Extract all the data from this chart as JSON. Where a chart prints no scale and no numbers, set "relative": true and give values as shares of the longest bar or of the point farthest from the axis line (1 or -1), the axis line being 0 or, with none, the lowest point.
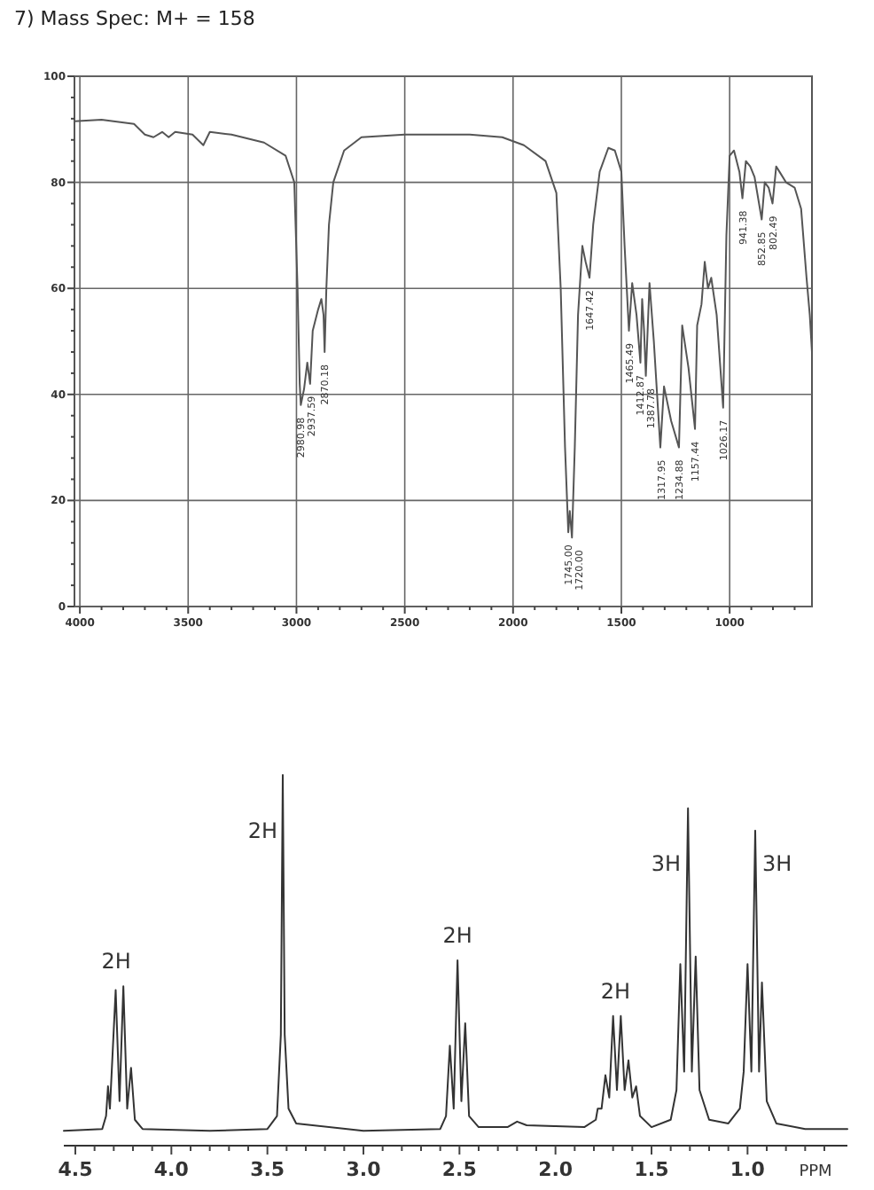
{
  "chart_data": [
    {
      "type": "line",
      "title": "7)  Mass Spec: M+ = 158",
      "color": "#555555",
      "grid": true,
      "xlim": [
        4025,
        620
      ],
      "ylim": [
        0,
        100
      ],
      "xticks": [
        {
          "value": 4000,
          "label": "4000"
        },
        {
          "value": 3900,
          "label": null
        },
        {
          "value": 3800,
          "label": null
        },
        {
          "value": 3700,
          "label": null
        },
        {
          "value": 3600,
          "label": null
        },
        {
          "value": 3500,
          "label": "3500"
        },
        {
          "value": 3400,
          "label": null
        },
        {
          "value": 3300,
          "label": null
        },
        {
          "value": 3200,
          "label": null
        },
        {
          "value": 3100,
          "label": null
        },
        {
          "value": 3000,
          "label": "3000"
        },
        {
          "value": 2900,
          "label": null
        },
        {
          "value": 2800,
          "label": null
        },
        {
          "value": 2700,
          "label": null
        },
        {
          "value": 2600,
          "label": null
        },
        {
          "value": 2500,
          "label": "2500"
        },
        {
          "value": 2400,
          "label": null
        },
        {
          "value": 2300,
          "label": null
        },
        {
          "value": 2200,
          "label": null
        },
        {
          "value": 2100,
          "label": null
        },
        {
          "value": 2000,
          "label": "2000"
        },
        {
          "value": 1900,
          "label": null
        },
        {
          "value": 1800,
          "label": null
        },
        {
          "value": 1700,
          "label": null
        },
        {
          "value": 1600,
          "label": null
        },
        {
          "value": 1500,
          "label": "1500"
        },
        {
          "value": 1400,
          "label": null
        },
        {
          "value": 1300,
          "label": null
        },
        {
          "value": 1200,
          "label": null
        },
        {
          "value": 1100,
          "label": null
        },
        {
          "value": 1000,
          "label": "1000"
        },
        {
          "value": 900,
          "label": null
        },
        {
          "value": 800,
          "label": null
        },
        {
          "value": 700,
          "label": null
        }
      ],
      "yticks": [
        0,
        {
          "value": 4,
          "label": null
        },
        {
          "value": 8,
          "label": null
        },
        {
          "value": 12,
          "label": null
        },
        {
          "value": 16,
          "label": null
        },
        20,
        {
          "value": 24,
          "label": null
        },
        {
          "value": 28,
          "label": null
        },
        {
          "value": 32,
          "label": null
        },
        {
          "value": 36,
          "label": null
        },
        40,
        {
          "value": 44,
          "label": null
        },
        {
          "value": 48,
          "label": null
        },
        {
          "value": 52,
          "label": null
        },
        {
          "value": 56,
          "label": null
        },
        60,
        {
          "value": 64,
          "label": null
        },
        {
          "value": 68,
          "label": null
        },
        {
          "value": 72,
          "label": null
        },
        {
          "value": 76,
          "label": null
        },
        80,
        {
          "value": 84,
          "label": null
        },
        {
          "value": 88,
          "label": null
        },
        {
          "value": 92,
          "label": null
        },
        {
          "value": 96,
          "label": null
        },
        100
      ],
      "x": [
        4025,
        3900,
        3750,
        3700,
        3660,
        3620,
        3590,
        3560,
        3480,
        3430,
        3400,
        3300,
        3150,
        3050,
        3010,
        2995,
        2985,
        2980,
        2965,
        2950,
        2937,
        2925,
        2900,
        2885,
        2875,
        2870,
        2862,
        2850,
        2830,
        2780,
        2700,
        2500,
        2200,
        2050,
        1950,
        1850,
        1800,
        1780,
        1760,
        1745,
        1738,
        1728,
        1715,
        1700,
        1680,
        1665,
        1647,
        1630,
        1600,
        1560,
        1530,
        1500,
        1485,
        1465,
        1450,
        1430,
        1412,
        1404,
        1395,
        1387,
        1370,
        1350,
        1320,
        1303,
        1270,
        1234,
        1219,
        1190,
        1160,
        1150,
        1130,
        1115,
        1100,
        1085,
        1060,
        1030,
        1015,
        1000,
        980,
        955,
        941,
        925,
        905,
        885,
        852,
        838,
        820,
        802,
        785,
        770,
        740,
        700,
        670,
        645,
        630,
        620
      ],
      "values": [
        91.5,
        91.8,
        91,
        89,
        88.5,
        89.5,
        88.5,
        89.5,
        89,
        87,
        89.5,
        89,
        87.5,
        85,
        80,
        60,
        42,
        38,
        41,
        46,
        42,
        52,
        56,
        58,
        55,
        48,
        60,
        72,
        80,
        86,
        88.5,
        89,
        89,
        88.5,
        87,
        84,
        78,
        60,
        30,
        14,
        18,
        13,
        30,
        55,
        68,
        65,
        62,
        72,
        82,
        86.5,
        86,
        82,
        68,
        52,
        61,
        55,
        46,
        58,
        52,
        43.5,
        61,
        50,
        30,
        41.5,
        35,
        30,
        53,
        45,
        33.5,
        53,
        57,
        65,
        60,
        62,
        55,
        37.5,
        70,
        85,
        86,
        82,
        77,
        84,
        83,
        81,
        73,
        80,
        79,
        76,
        83,
        82,
        80,
        79,
        75,
        62,
        55,
        48
      ],
      "annotations": [
        {
          "text": "2980.98",
          "x": 2980,
          "y": 38
        },
        {
          "text": "2937.59",
          "x": 2937,
          "y": 42
        },
        {
          "text": "2870.18",
          "x": 2870,
          "y": 48
        },
        {
          "text": "1745.00",
          "x": 1745,
          "y": 14
        },
        {
          "text": "1720.00",
          "x": 1728,
          "y": 13
        },
        {
          "text": "1647.42",
          "x": 1647,
          "y": 62
        },
        {
          "text": "1465.49",
          "x": 1465,
          "y": 52
        },
        {
          "text": "1412.87",
          "x": 1412,
          "y": 46
        },
        {
          "text": "1387.78",
          "x": 1387,
          "y": 43.5
        },
        {
          "text": "1317.95",
          "x": 1320,
          "y": 30
        },
        {
          "text": "1234.88",
          "x": 1234,
          "y": 30
        },
        {
          "text": "1157.44",
          "x": 1160,
          "y": 33.5
        },
        {
          "text": "1026.17",
          "x": 1030,
          "y": 37.5
        },
        {
          "text": "941.38",
          "x": 941,
          "y": 77
        },
        {
          "text": "852.85",
          "x": 852,
          "y": 73
        },
        {
          "text": "802.49",
          "x": 802,
          "y": 76
        }
      ]
    },
    {
      "type": "line",
      "relative": true,
      "color": "#333333",
      "xlabel": "PPM",
      "xlim": [
        4.56,
        0.48
      ],
      "xticks": [
        {
          "value": 4.5,
          "label": "4.5"
        },
        {
          "value": 4.4,
          "label": null
        },
        {
          "value": 4.3,
          "label": null
        },
        {
          "value": 4.2,
          "label": null
        },
        {
          "value": 4.1,
          "label": null
        },
        {
          "value": 4.0,
          "label": "4.0"
        },
        {
          "value": 3.9,
          "label": null
        },
        {
          "value": 3.8,
          "label": null
        },
        {
          "value": 3.7,
          "label": null
        },
        {
          "value": 3.6,
          "label": null
        },
        {
          "value": 3.5,
          "label": "3.5"
        },
        {
          "value": 3.4,
          "label": null
        },
        {
          "value": 3.3,
          "label": null
        },
        {
          "value": 3.2,
          "label": null
        },
        {
          "value": 3.1,
          "label": null
        },
        {
          "value": 3.0,
          "label": "3.0"
        },
        {
          "value": 2.9,
          "label": null
        },
        {
          "value": 2.8,
          "label": null
        },
        {
          "value": 2.7,
          "label": null
        },
        {
          "value": 2.6,
          "label": null
        },
        {
          "value": 2.5,
          "label": "2.5"
        },
        {
          "value": 2.4,
          "label": null
        },
        {
          "value": 2.3,
          "label": null
        },
        {
          "value": 2.2,
          "label": null
        },
        {
          "value": 2.1,
          "label": null
        },
        {
          "value": 2.0,
          "label": "2.0"
        },
        {
          "value": 1.9,
          "label": null
        },
        {
          "value": 1.8,
          "label": null
        },
        {
          "value": 1.7,
          "label": null
        },
        {
          "value": 1.6,
          "label": null
        },
        {
          "value": 1.5,
          "label": "1.5"
        },
        {
          "value": 1.4,
          "label": null
        },
        {
          "value": 1.3,
          "label": null
        },
        {
          "value": 1.2,
          "label": null
        },
        {
          "value": 1.1,
          "label": null
        },
        {
          "value": 1.0,
          "label": "1.0"
        },
        {
          "value": 0.9,
          "label": null
        },
        {
          "value": 0.8,
          "label": null
        },
        {
          "value": 0.7,
          "label": null
        },
        {
          "value": 0.6,
          "label": null
        }
      ],
      "x": [
        4.56,
        4.36,
        4.34,
        4.33,
        4.32,
        4.29,
        4.27,
        4.25,
        4.23,
        4.21,
        4.19,
        4.15,
        3.8,
        3.5,
        3.45,
        3.43,
        3.42,
        3.41,
        3.39,
        3.35,
        3.0,
        2.6,
        2.57,
        2.55,
        2.53,
        2.51,
        2.49,
        2.47,
        2.45,
        2.4,
        2.25,
        2.2,
        2.15,
        1.85,
        1.79,
        1.78,
        1.76,
        1.74,
        1.72,
        1.7,
        1.68,
        1.66,
        1.64,
        1.62,
        1.6,
        1.58,
        1.56,
        1.5,
        1.4,
        1.37,
        1.35,
        1.33,
        1.31,
        1.29,
        1.27,
        1.25,
        1.2,
        1.1,
        1.04,
        1.02,
        1.0,
        0.98,
        0.96,
        0.94,
        0.925,
        0.9,
        0.85,
        0.7,
        0.48
      ],
      "values": [
        0.04,
        0.045,
        0.08,
        0.16,
        0.1,
        0.42,
        0.12,
        0.43,
        0.1,
        0.21,
        0.07,
        0.045,
        0.04,
        0.045,
        0.08,
        0.3,
        1.0,
        0.3,
        0.1,
        0.06,
        0.04,
        0.045,
        0.08,
        0.27,
        0.1,
        0.5,
        0.12,
        0.33,
        0.08,
        0.05,
        0.05,
        0.065,
        0.055,
        0.05,
        0.07,
        0.1,
        0.1,
        0.19,
        0.13,
        0.35,
        0.15,
        0.35,
        0.15,
        0.23,
        0.13,
        0.16,
        0.08,
        0.05,
        0.07,
        0.15,
        0.49,
        0.2,
        0.91,
        0.2,
        0.51,
        0.15,
        0.07,
        0.06,
        0.1,
        0.2,
        0.49,
        0.2,
        0.85,
        0.2,
        0.44,
        0.12,
        0.06,
        0.045,
        0.045
      ],
      "annotations": [
        {
          "text": "2H",
          "x": 4.25,
          "y": 0.43
        },
        {
          "text": "2H",
          "x": 3.42,
          "y": 0.85
        },
        {
          "text": "2H",
          "x": 2.51,
          "y": 0.5
        },
        {
          "text": "2H",
          "x": 1.66,
          "y": 0.35
        },
        {
          "text": "3H",
          "x": 1.31,
          "y": 0.76
        },
        {
          "text": "3H",
          "x": 0.96,
          "y": 0.76
        }
      ]
    }
  ]
}
